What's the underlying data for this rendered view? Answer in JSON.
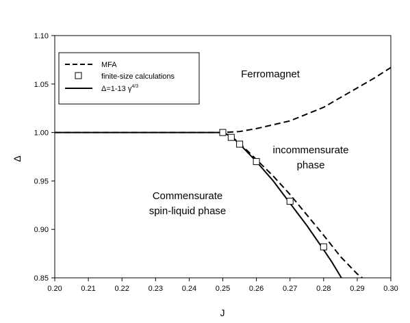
{
  "chart_data": {
    "type": "line",
    "title": "",
    "xlabel": "J",
    "ylabel": "Δ",
    "xlim": [
      0.2,
      0.3
    ],
    "ylim": [
      0.85,
      1.1
    ],
    "xticks": [
      "0.20",
      "0.21",
      "0.22",
      "0.23",
      "0.24",
      "0.25",
      "0.26",
      "0.27",
      "0.28",
      "0.29",
      "0.30"
    ],
    "yticks": [
      "0.85",
      "0.90",
      "0.95",
      "1.00",
      "1.05",
      "1.10"
    ],
    "grid": false,
    "legend_position": "top-left",
    "legend": {
      "mfa": "MFA",
      "finite": "finite-size calculations",
      "fit_prefix": "Δ=1-13 γ",
      "fit_sup": "4/3"
    },
    "series": [
      {
        "key": "mfa",
        "style": "dashed",
        "x": [
          0.2,
          0.25,
          0.255,
          0.26,
          0.265,
          0.27,
          0.275,
          0.28,
          0.285,
          0.29,
          0.295,
          0.3
        ],
        "y": [
          1.0,
          1.0,
          1.001,
          1.004,
          1.008,
          1.012,
          1.019,
          1.026,
          1.036,
          1.046,
          1.056,
          1.067
        ]
      },
      {
        "key": "mfa_lower",
        "style": "dashed",
        "x": [
          0.25,
          0.2525,
          0.255,
          0.26,
          0.265,
          0.27,
          0.275,
          0.28,
          0.285,
          0.29,
          0.2915
        ],
        "y": [
          1.0,
          0.996,
          0.989,
          0.972,
          0.955,
          0.936,
          0.915,
          0.894,
          0.872,
          0.854,
          0.85
        ]
      },
      {
        "key": "fit",
        "style": "solid",
        "x": [
          0.2,
          0.25,
          0.2525,
          0.255,
          0.26,
          0.265,
          0.27,
          0.275,
          0.28,
          0.2825,
          0.2853
        ],
        "y": [
          1.0,
          1.0,
          0.996,
          0.988,
          0.97,
          0.95,
          0.927,
          0.904,
          0.879,
          0.866,
          0.85
        ]
      }
    ],
    "points": {
      "key": "finite",
      "x": [
        0.25,
        0.2525,
        0.255,
        0.26,
        0.27,
        0.28
      ],
      "y": [
        1.0,
        0.995,
        0.988,
        0.97,
        0.929,
        0.882
      ]
    },
    "annotations": {
      "ferromagnet": "Ferromagnet",
      "incomm_1": "incommensurate",
      "incomm_2": "phase",
      "comm_1": "Commensurate",
      "comm_2": "spin-liquid phase"
    }
  }
}
